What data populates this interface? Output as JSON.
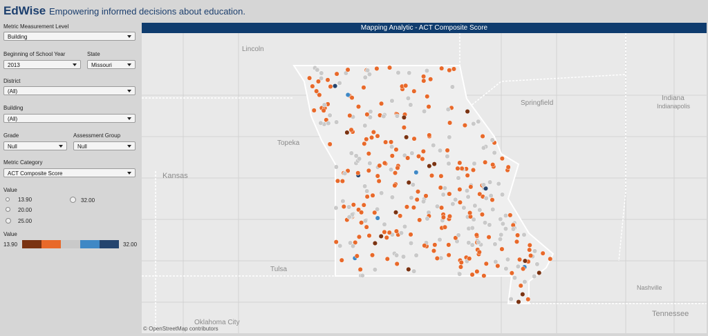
{
  "header": {
    "brand": "EdWise",
    "tagline": "Empowering informed decisions about education."
  },
  "filters": {
    "level": {
      "label": "Metric Measurement Level",
      "value": "Building"
    },
    "year": {
      "label": "Beginning of School Year",
      "value": "2013"
    },
    "state": {
      "label": "State",
      "value": "Missouri"
    },
    "district": {
      "label": "District",
      "value": "(All)"
    },
    "building": {
      "label": "Building",
      "value": "(All)"
    },
    "grade": {
      "label": "Grade",
      "value": "Null"
    },
    "group": {
      "label": "Assessment Group",
      "value": "Null"
    },
    "category": {
      "label": "Metric Category",
      "value": "ACT Composite Score"
    }
  },
  "size_legend": {
    "title": "Value",
    "items": [
      "13.90",
      "20.00",
      "25.00",
      "32.00"
    ]
  },
  "color_legend": {
    "title": "Value",
    "min": "13.90",
    "max": "32.00"
  },
  "map": {
    "title": "Mapping Analytic - ACT Composite Score",
    "places": [
      "Lincoln",
      "Springfield",
      "Indiana",
      "Indianapolis",
      "Topeka",
      "Kansas",
      "Tulsa",
      "Oklahoma City",
      "Nashville",
      "Tennessee"
    ],
    "attribution": "© OpenStreetMap contributors"
  }
}
